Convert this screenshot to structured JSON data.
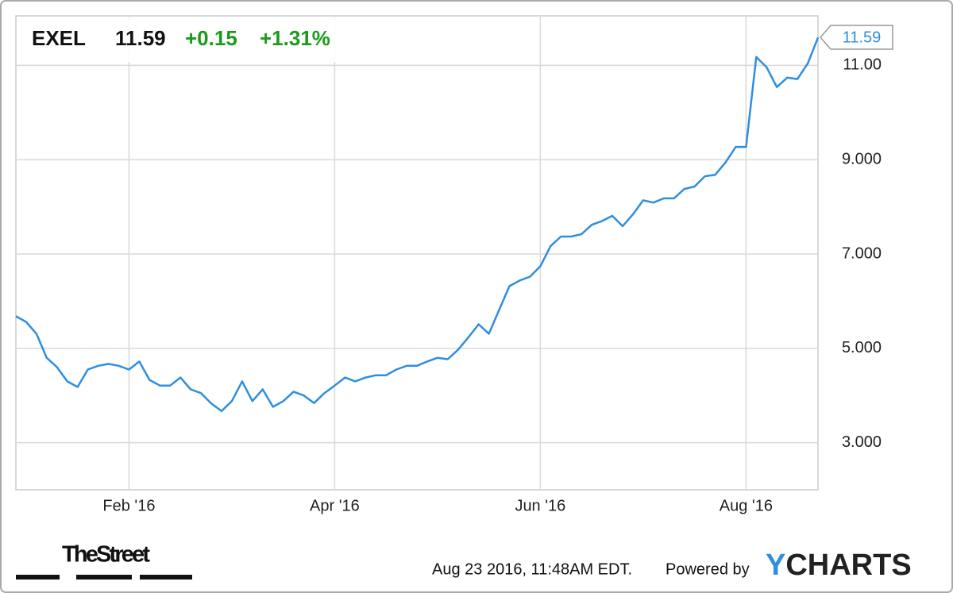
{
  "chart_data": {
    "type": "line",
    "ticker": "EXEL",
    "price": 11.59,
    "change": "+0.15",
    "change_percent": "+1.31%",
    "categories": [
      null,
      null,
      null,
      null,
      null,
      null,
      null,
      null,
      null,
      null,
      null,
      "Feb '16",
      null,
      null,
      null,
      null,
      null,
      null,
      null,
      null,
      null,
      null,
      null,
      null,
      null,
      null,
      null,
      null,
      null,
      null,
      null,
      "Apr '16",
      null,
      null,
      null,
      null,
      null,
      null,
      null,
      null,
      null,
      null,
      null,
      null,
      null,
      null,
      null,
      null,
      null,
      null,
      null,
      "Jun '16",
      null,
      null,
      null,
      null,
      null,
      null,
      null,
      null,
      null,
      null,
      null,
      null,
      null,
      null,
      null,
      null,
      null,
      null,
      null,
      "Aug '16",
      null,
      null,
      null,
      null,
      null,
      null,
      null
    ],
    "values": [
      5.68,
      5.56,
      5.31,
      4.8,
      4.6,
      4.3,
      4.18,
      4.55,
      4.63,
      4.67,
      4.63,
      4.55,
      4.72,
      4.33,
      4.21,
      4.21,
      4.38,
      4.13,
      4.05,
      3.83,
      3.67,
      3.88,
      4.3,
      3.88,
      4.13,
      3.76,
      3.88,
      4.08,
      4.0,
      3.84,
      4.05,
      4.21,
      4.38,
      4.3,
      4.38,
      4.43,
      4.43,
      4.55,
      4.63,
      4.63,
      4.72,
      4.8,
      4.77,
      4.97,
      5.23,
      5.51,
      5.31,
      5.82,
      6.32,
      6.44,
      6.52,
      6.74,
      7.17,
      7.37,
      7.37,
      7.42,
      7.62,
      7.7,
      7.81,
      7.59,
      7.84,
      8.14,
      8.09,
      8.18,
      8.18,
      8.38,
      8.43,
      8.65,
      8.68,
      8.94,
      9.27,
      9.27,
      11.18,
      10.96,
      10.54,
      10.74,
      10.71,
      11.04,
      11.59
    ],
    "color": "#2f8ee0",
    "ylim": [
      2,
      12.05
    ],
    "yticks": [
      {
        "value": 3,
        "label": "3.000"
      },
      {
        "value": 5,
        "label": "5.000"
      },
      {
        "value": 7,
        "label": "7.000"
      },
      {
        "value": 9,
        "label": "9.000"
      },
      {
        "value": 11,
        "label": "11.00"
      }
    ],
    "grid": true
  },
  "footer": {
    "timestamp": "Aug 23 2016, 11:48AM EDT.",
    "powered_by": "Powered by",
    "ycharts_logo": [
      "Y",
      "CHARTS"
    ],
    "source_logo": "TheStreet"
  }
}
